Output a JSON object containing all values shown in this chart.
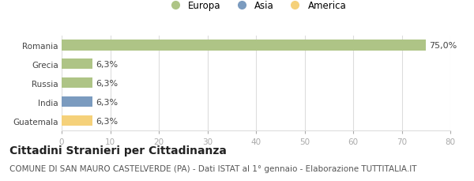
{
  "categories": [
    "Romania",
    "Grecia",
    "Russia",
    "India",
    "Guatemala"
  ],
  "values": [
    75.0,
    6.3,
    6.3,
    6.3,
    6.3
  ],
  "bar_colors": [
    "#aec486",
    "#aec486",
    "#aec486",
    "#7b9bbf",
    "#f5d17a"
  ],
  "bar_labels": [
    "75,0%",
    "6,3%",
    "6,3%",
    "6,3%",
    "6,3%"
  ],
  "legend_items": [
    {
      "label": "Europa",
      "color": "#aec486"
    },
    {
      "label": "Asia",
      "color": "#7b9bbf"
    },
    {
      "label": "America",
      "color": "#f5d17a"
    }
  ],
  "xlim": [
    0,
    80
  ],
  "xticks": [
    0,
    10,
    20,
    30,
    40,
    50,
    60,
    70,
    80
  ],
  "title": "Cittadini Stranieri per Cittadinanza",
  "subtitle": "COMUNE DI SAN MAURO CASTELVERDE (PA) - Dati ISTAT al 1° gennaio - Elaborazione TUTTITALIA.IT",
  "title_fontsize": 10,
  "subtitle_fontsize": 7.5,
  "label_fontsize": 8,
  "tick_fontsize": 7.5,
  "legend_fontsize": 8.5,
  "background_color": "#ffffff",
  "grid_color": "#dddddd"
}
